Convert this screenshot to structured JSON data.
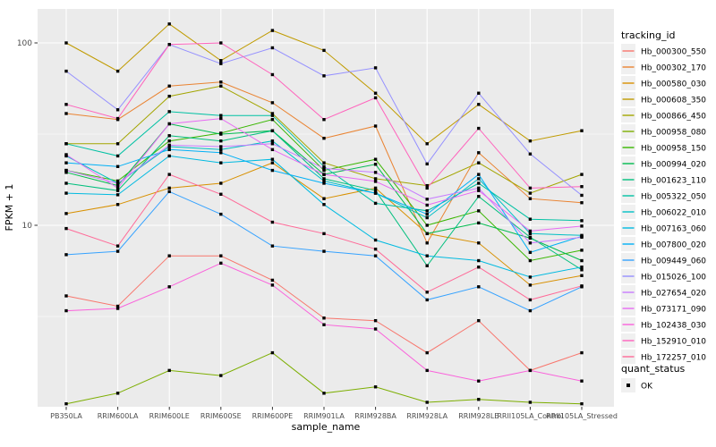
{
  "chart_data": {
    "type": "line",
    "title": "",
    "xlabel": "sample_name",
    "ylabel": "FPKM + 1",
    "y_scale": "log10",
    "y_ticks": [
      100,
      10
    ],
    "y_tick_labels": [
      "100",
      "10"
    ],
    "y_minor_ticks": [
      31.62,
      3.162
    ],
    "ylim": [
      1.0,
      153
    ],
    "grid": true,
    "categories": [
      "PB350LA",
      "RRIM600LA",
      "RRIM600LE",
      "RRIM600SE",
      "RRIM600PE",
      "RRIM901LA",
      "RRIM928BA",
      "RRIM928LA",
      "RRIM928LE",
      "RRII105LA_Control",
      "RRII105LA_Stressed"
    ],
    "series": [
      {
        "name": "Hb_000300_550",
        "color": "#F8766D",
        "values": [
          4.1,
          3.6,
          6.8,
          6.8,
          5.0,
          3.1,
          3.0,
          2.0,
          3.0,
          1.6,
          2.0
        ]
      },
      {
        "name": "Hb_000302_170",
        "color": "#EA8331",
        "values": [
          41,
          38,
          58,
          61,
          47,
          30,
          35,
          8.0,
          25,
          14,
          13.3
        ]
      },
      {
        "name": "Hb_000580_030",
        "color": "#D89000",
        "values": [
          11.6,
          13,
          16,
          17,
          22,
          14,
          16,
          9.0,
          8.0,
          4.7,
          5.3
        ]
      },
      {
        "name": "Hb_000608_350",
        "color": "#C09B00",
        "values": [
          100,
          70,
          127,
          80,
          117,
          91,
          53,
          28,
          46,
          29,
          33
        ]
      },
      {
        "name": "Hb_000866_450",
        "color": "#A3A500",
        "values": [
          28,
          28,
          51,
          58,
          41,
          22,
          18,
          16.5,
          22,
          15,
          19
        ]
      },
      {
        "name": "Hb_000958_080",
        "color": "#7CAE00",
        "values": [
          1.05,
          1.2,
          1.6,
          1.5,
          2.0,
          1.2,
          1.3,
          1.07,
          1.11,
          1.07,
          1.05
        ]
      },
      {
        "name": "Hb_000958_150",
        "color": "#39B600",
        "values": [
          20,
          17.5,
          29,
          32,
          38,
          20,
          23,
          10,
          12,
          6.4,
          7.3
        ]
      },
      {
        "name": "Hb_000994_020",
        "color": "#00BB4E",
        "values": [
          19.5,
          16.5,
          36,
          31.6,
          33,
          19,
          21.6,
          9.0,
          10.3,
          8.5,
          6.4
        ]
      },
      {
        "name": "Hb_001623_110",
        "color": "#00BF7D",
        "values": [
          17,
          15.5,
          31,
          29,
          33,
          18,
          15.5,
          6.0,
          14.4,
          8.6,
          5.7
        ]
      },
      {
        "name": "Hb_005322_050",
        "color": "#00C1A3",
        "values": [
          28,
          24,
          42,
          40,
          40,
          21,
          13.2,
          12,
          17,
          10.8,
          10.6
        ]
      },
      {
        "name": "Hb_006022_010",
        "color": "#00BFC4",
        "values": [
          24,
          17,
          27,
          26,
          29,
          17.5,
          15,
          11,
          18,
          9.0,
          8.8
        ]
      },
      {
        "name": "Hb_007163_060",
        "color": "#00BAE0",
        "values": [
          15,
          14.7,
          24,
          22,
          23,
          13,
          8.3,
          6.8,
          6.4,
          5.2,
          5.9
        ]
      },
      {
        "name": "Hb_007800_020",
        "color": "#00B0F6",
        "values": [
          22,
          21,
          26,
          25,
          20,
          17,
          15,
          11.5,
          19,
          7.1,
          8.7
        ]
      },
      {
        "name": "Hb_009449_060",
        "color": "#35A2FF",
        "values": [
          6.9,
          7.2,
          15.3,
          11.5,
          7.7,
          7.2,
          6.8,
          3.9,
          4.6,
          3.4,
          4.6
        ]
      },
      {
        "name": "Hb_015026_100",
        "color": "#9590FF",
        "values": [
          70,
          43,
          98,
          77,
          94,
          66,
          73,
          21.7,
          53,
          24.6,
          14.6
        ]
      },
      {
        "name": "Hb_027654_020",
        "color": "#C77CFF",
        "values": [
          20,
          17,
          27.5,
          27,
          28,
          20.5,
          19.5,
          13.9,
          16,
          8.0,
          8.6
        ]
      },
      {
        "name": "Hb_073171_090",
        "color": "#E76BF3",
        "values": [
          24.4,
          16,
          36,
          38.5,
          26,
          19,
          17.4,
          12.9,
          15.5,
          9.3,
          9.9
        ]
      },
      {
        "name": "Hb_102438_030",
        "color": "#FA62DB",
        "values": [
          3.4,
          3.5,
          4.6,
          6.2,
          4.7,
          2.85,
          2.7,
          1.6,
          1.4,
          1.6,
          1.4
        ]
      },
      {
        "name": "Hb_152910_010",
        "color": "#FF62BC",
        "values": [
          46,
          38.5,
          98,
          100,
          67,
          38,
          50,
          16,
          34,
          16,
          16.3
        ]
      },
      {
        "name": "Hb_172257_010",
        "color": "#FF6A98",
        "values": [
          9.6,
          7.7,
          19,
          14.8,
          10.4,
          9.0,
          7.4,
          4.3,
          5.9,
          3.9,
          4.65
        ]
      }
    ],
    "legend": {
      "title": "tracking_id",
      "position": "right"
    },
    "legend2": {
      "title": "quant_status",
      "items": [
        {
          "label": "OK",
          "marker": "black-square"
        }
      ]
    },
    "colors": {
      "panel_bg": "#EBEBEB",
      "grid": "#FFFFFF",
      "tick_label": "#4D4D4D",
      "axis_title": "#000000",
      "point": "#000000",
      "legend_key_bg": "#F0F0F0"
    }
  }
}
